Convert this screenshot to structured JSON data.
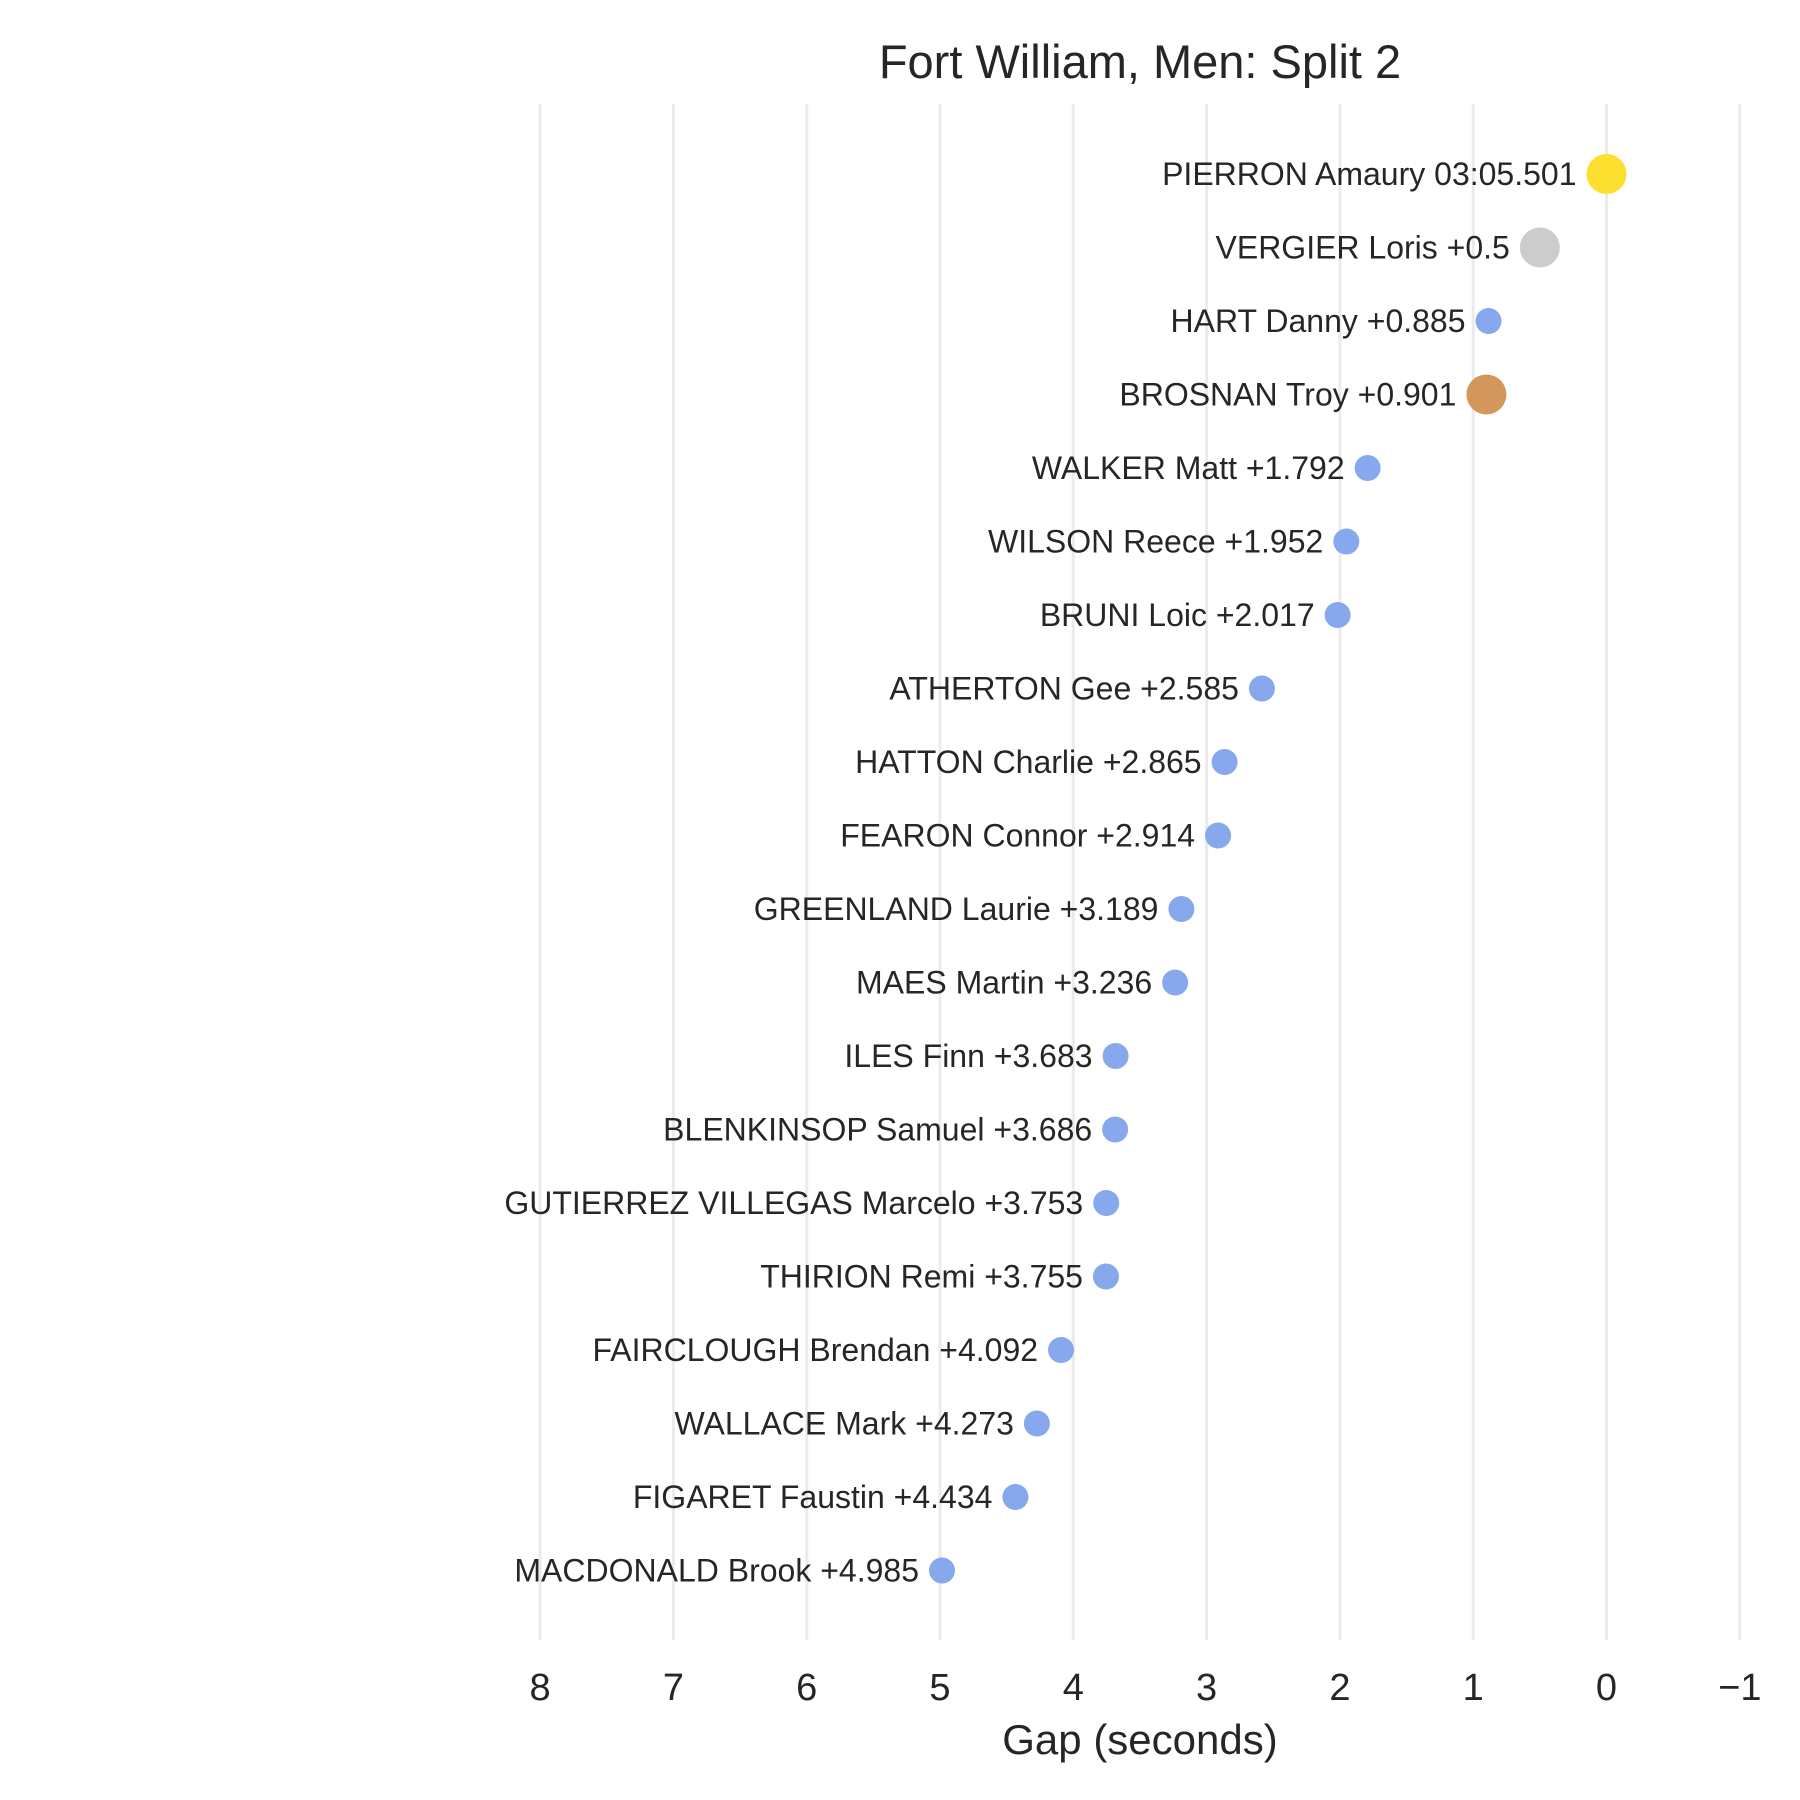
{
  "chart_data": {
    "type": "scatter",
    "title": "Fort William, Men: Split 2",
    "xlabel": "Gap (seconds)",
    "ylabel": "",
    "xlim": [
      8.0,
      -1.0
    ],
    "x_reversed": true,
    "x_ticks": [
      {
        "value": 8,
        "label": "8"
      },
      {
        "value": 7,
        "label": "7"
      },
      {
        "value": 6,
        "label": "6"
      },
      {
        "value": 5,
        "label": "5"
      },
      {
        "value": 4,
        "label": "4"
      },
      {
        "value": 3,
        "label": "3"
      },
      {
        "value": 2,
        "label": "2"
      },
      {
        "value": 1,
        "label": "1"
      },
      {
        "value": 0,
        "label": "0"
      },
      {
        "value": -1,
        "label": "−1"
      }
    ],
    "grid": "vertical",
    "legend": "none",
    "colors": {
      "gold": "#fde02f",
      "silver": "#cccccc",
      "bronze": "#d4975b",
      "default": "#87a8ec"
    },
    "points": [
      {
        "label": "PIERRON Amaury 03:05.501",
        "gap": 0.0,
        "medal": "gold"
      },
      {
        "label": "VERGIER Loris +0.5",
        "gap": 0.5,
        "medal": "silver"
      },
      {
        "label": "HART Danny +0.885",
        "gap": 0.885,
        "medal": "default"
      },
      {
        "label": "BROSNAN Troy +0.901",
        "gap": 0.901,
        "medal": "bronze"
      },
      {
        "label": "WALKER Matt +1.792",
        "gap": 1.792,
        "medal": "default"
      },
      {
        "label": "WILSON Reece +1.952",
        "gap": 1.952,
        "medal": "default"
      },
      {
        "label": "BRUNI Loic +2.017",
        "gap": 2.017,
        "medal": "default"
      },
      {
        "label": "ATHERTON Gee +2.585",
        "gap": 2.585,
        "medal": "default"
      },
      {
        "label": "HATTON Charlie +2.865",
        "gap": 2.865,
        "medal": "default"
      },
      {
        "label": "FEARON Connor +2.914",
        "gap": 2.914,
        "medal": "default"
      },
      {
        "label": "GREENLAND Laurie +3.189",
        "gap": 3.189,
        "medal": "default"
      },
      {
        "label": "MAES Martin +3.236",
        "gap": 3.236,
        "medal": "default"
      },
      {
        "label": "ILES Finn +3.683",
        "gap": 3.683,
        "medal": "default"
      },
      {
        "label": "BLENKINSOP Samuel +3.686",
        "gap": 3.686,
        "medal": "default"
      },
      {
        "label": "GUTIERREZ VILLEGAS Marcelo +3.753",
        "gap": 3.753,
        "medal": "default"
      },
      {
        "label": "THIRION Remi +3.755",
        "gap": 3.755,
        "medal": "default"
      },
      {
        "label": "FAIRCLOUGH Brendan +4.092",
        "gap": 4.092,
        "medal": "default"
      },
      {
        "label": "WALLACE Mark +4.273",
        "gap": 4.273,
        "medal": "default"
      },
      {
        "label": "FIGARET Faustin +4.434",
        "gap": 4.434,
        "medal": "default"
      },
      {
        "label": "MACDONALD Brook +4.985",
        "gap": 4.985,
        "medal": "default"
      }
    ]
  }
}
